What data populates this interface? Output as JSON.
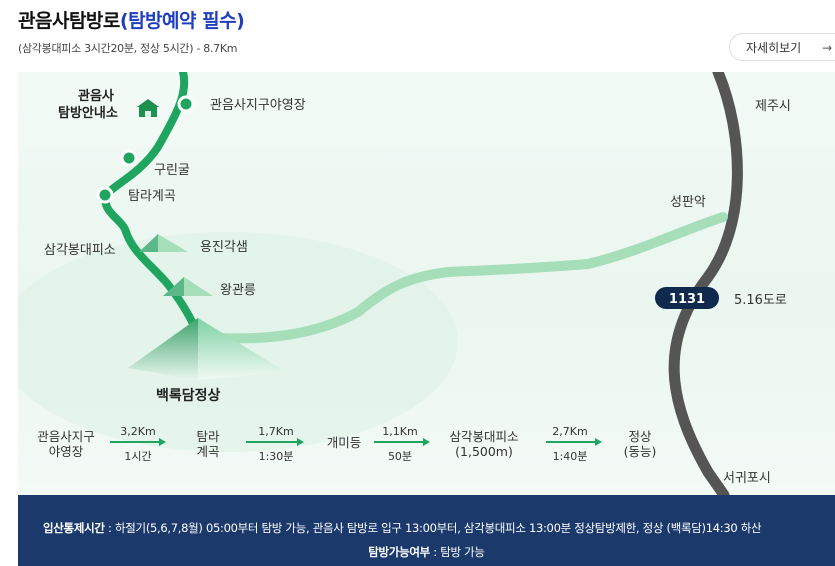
{
  "header": {
    "title_main": "관음사탐방로",
    "title_emph": "(탐방예약 필수)",
    "subtitle": "(삼각봉대피소 3시간20분, 정상 5시간) - 8.7Km",
    "more_label": "자세히보기",
    "more_arrow": "→"
  },
  "map": {
    "places": {
      "info_center": [
        "관음사",
        "탐방안내소"
      ],
      "campground": "관음사지구야영장",
      "gurin": "구린굴",
      "tamra": "탐라계곡",
      "samgak": "삼각봉대피소",
      "yongjin": "용진각샘",
      "wanggwan": "왕관릉",
      "summit": "백록담정상",
      "seongpan": "성판악",
      "jeju": "제주시",
      "road_no": "1131",
      "road_name": "5.16도로",
      "seogwipo": "서귀포시"
    },
    "route": {
      "stops": [
        [
          "관음사지구",
          "야영장"
        ],
        [
          "탐라",
          "계곡"
        ],
        [
          "개미등"
        ],
        [
          "삼각봉대피소",
          "(1,500m)"
        ],
        [
          "정상",
          "(동능)"
        ]
      ],
      "segments": [
        {
          "dist": "3,2Km",
          "time": "1시간"
        },
        {
          "dist": "1,7Km",
          "time": "1:30분"
        },
        {
          "dist": "1,1Km",
          "time": "50분"
        },
        {
          "dist": "2,7Km",
          "time": "1:40분"
        }
      ]
    }
  },
  "notice": {
    "label1": "입산통제시간",
    "text1": " : 하절기(5,6,7,8월) 05:00부터 탐방 가능, 관음사 탐방로 입구 13:00부터, 삼각봉대피소 13:00분 정상탐방제한, 정상 (백록담)14:30 하산",
    "label2": "탐방가능여부",
    "text2": " : 탐방 가능"
  }
}
